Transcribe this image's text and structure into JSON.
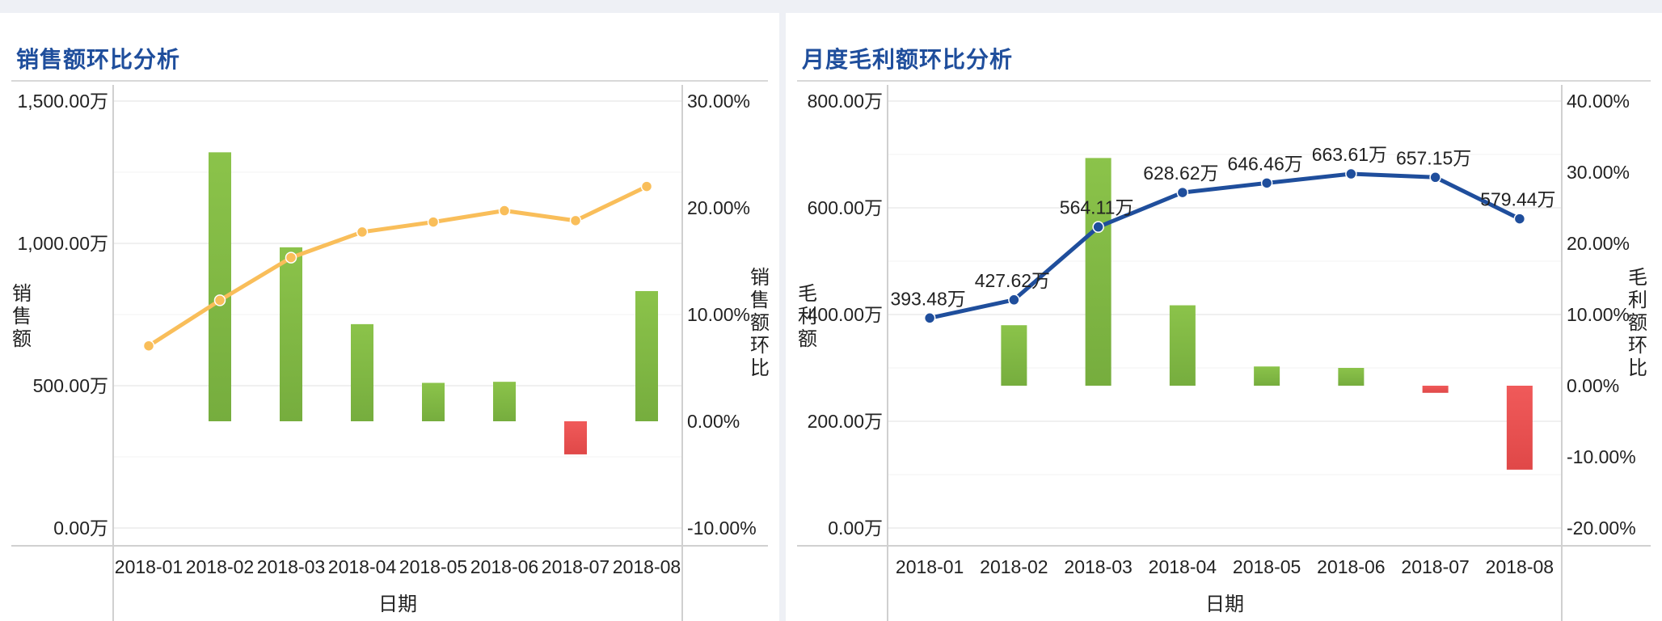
{
  "colors": {
    "title": "#1f4e9c",
    "bar_positive_top": "#8bc34a",
    "bar_positive_bottom": "#76ad3e",
    "bar_negative_top": "#f05a5a",
    "bar_negative_bottom": "#e04848",
    "line_sales": "#f9be5a",
    "line_profit": "#1f4e9c"
  },
  "chart_data": [
    {
      "type": "bar",
      "title": "销售额环比分析",
      "xlabel": "日期",
      "ylabel": "销售额",
      "y2label": "销售额环比",
      "categories": [
        "2018-01",
        "2018-02",
        "2018-03",
        "2018-04",
        "2018-05",
        "2018-06",
        "2018-07",
        "2018-08"
      ],
      "ylim": [
        0,
        1500
      ],
      "y2lim": [
        -10,
        30
      ],
      "y_ticks": [
        "0.00万",
        "500.00万",
        "1,000.00万",
        "1,500.00万"
      ],
      "y2_ticks": [
        "-10.00%",
        "0.00%",
        "10.00%",
        "20.00%",
        "30.00%"
      ],
      "series": [
        {
          "name": "销售额环比",
          "kind": "bar",
          "axis": "right",
          "unit": "%",
          "values": [
            null,
            25.2,
            16.3,
            9.1,
            3.6,
            3.7,
            -3.1,
            12.2
          ]
        },
        {
          "name": "销售额",
          "kind": "line",
          "axis": "left",
          "unit": "万",
          "values": [
            640,
            800,
            950,
            1040,
            1075,
            1115,
            1080,
            1200
          ]
        }
      ],
      "grid": true
    },
    {
      "type": "bar",
      "title": "月度毛利额环比分析",
      "xlabel": "日期",
      "ylabel": "毛利额",
      "y2label": "毛利额环比",
      "categories": [
        "2018-01",
        "2018-02",
        "2018-03",
        "2018-04",
        "2018-05",
        "2018-06",
        "2018-07",
        "2018-08"
      ],
      "ylim": [
        0,
        800
      ],
      "y2lim": [
        -20,
        40
      ],
      "y_ticks": [
        "0.00万",
        "200.00万",
        "400.00万",
        "600.00万",
        "800.00万"
      ],
      "y2_ticks": [
        "-20.00%",
        "-10.00%",
        "0.00%",
        "10.00%",
        "20.00%",
        "30.00%",
        "40.00%"
      ],
      "series": [
        {
          "name": "毛利额环比",
          "kind": "bar",
          "axis": "right",
          "unit": "%",
          "values": [
            null,
            8.5,
            32.0,
            11.3,
            2.7,
            2.5,
            -1.0,
            -11.8
          ]
        },
        {
          "name": "毛利额",
          "kind": "line",
          "axis": "left",
          "unit": "万",
          "values": [
            393.48,
            427.62,
            564.11,
            628.62,
            646.46,
            663.61,
            657.15,
            579.44
          ],
          "labels": [
            "393.48万",
            "427.62万",
            "564.11万",
            "628.62万",
            "646.46万",
            "663.61万",
            "657.15万",
            "579.44万"
          ]
        }
      ],
      "grid": true
    }
  ]
}
